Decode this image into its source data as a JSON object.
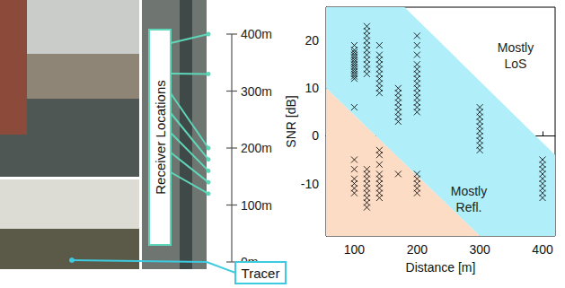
{
  "map": {
    "receiver_label": "Receiver Locations",
    "tracer_label": "Tracer",
    "scale_ticks": [
      {
        "value": 0,
        "label": "0m"
      },
      {
        "value": 100,
        "label": "100m"
      },
      {
        "value": 200,
        "label": "200m"
      },
      {
        "value": 300,
        "label": "300m"
      },
      {
        "value": 400,
        "label": "400m"
      }
    ],
    "receiver_distances": [
      400,
      330,
      200,
      180,
      160,
      140,
      120
    ]
  },
  "chart_data": {
    "type": "scatter",
    "x_label": "Distance [m]",
    "y_label": "SNR [dB]",
    "xlim": [
      55,
      420
    ],
    "xticks": [
      100,
      200,
      300,
      400
    ],
    "ylim": [
      -21,
      27
    ],
    "yticks": [
      -10,
      0,
      10,
      20
    ],
    "grid": false,
    "marker": "x",
    "color": "#000000",
    "regions": [
      {
        "label": "Mostly LoS",
        "color": "#b0eef9",
        "polygon": [
          [
            55,
            27
          ],
          [
            180,
            27
          ],
          [
            420,
            -4
          ],
          [
            420,
            -21
          ],
          [
            300,
            -21
          ],
          [
            55,
            10
          ]
        ]
      },
      {
        "label": "Mostly Refl.",
        "color": "#fcdcc4",
        "polygon": [
          [
            55,
            10
          ],
          [
            300,
            -21
          ],
          [
            55,
            -21
          ]
        ]
      }
    ],
    "x": [
      100,
      100,
      100,
      100,
      100,
      100,
      100,
      100,
      100,
      100,
      100,
      100,
      100,
      100,
      100,
      100,
      100,
      100,
      100,
      100,
      100,
      120,
      120,
      120,
      120,
      120,
      120,
      120,
      120,
      120,
      120,
      120,
      120,
      120,
      120,
      120,
      120,
      120,
      120,
      120,
      120,
      140,
      140,
      140,
      140,
      140,
      140,
      140,
      140,
      140,
      140,
      140,
      140,
      140,
      140,
      140,
      140,
      140,
      140,
      140,
      170,
      170,
      170,
      170,
      170,
      170,
      170,
      170,
      170,
      200,
      200,
      200,
      200,
      200,
      200,
      200,
      200,
      200,
      200,
      200,
      200,
      200,
      200,
      200,
      200,
      200,
      200,
      200,
      300,
      300,
      300,
      300,
      300,
      300,
      300,
      300,
      300,
      300,
      400,
      400,
      400,
      400,
      400,
      400,
      400,
      400,
      400
    ],
    "values": [
      19,
      18,
      17.5,
      17,
      16.5,
      16,
      15.5,
      15,
      14.5,
      14,
      13.5,
      13,
      12.5,
      12,
      6,
      -5,
      -7,
      -9,
      -10,
      -11,
      -12,
      23,
      22,
      21,
      20,
      19,
      18,
      17,
      16,
      15,
      14,
      13,
      -7,
      -8,
      -9,
      -10,
      -11,
      -12,
      -13,
      -14,
      -15,
      19,
      17,
      16,
      15,
      14,
      13,
      12,
      11,
      10,
      9,
      -3,
      -4,
      -6,
      -8,
      -9,
      -10,
      -11,
      -12,
      -13,
      10,
      9,
      8,
      7,
      6,
      5,
      4,
      3,
      -8,
      21,
      19,
      17,
      15,
      14,
      13,
      12,
      11,
      10,
      9,
      8,
      7,
      6,
      5,
      -8,
      -9,
      -10,
      -11,
      -12,
      6,
      5,
      4,
      3,
      2,
      1,
      0,
      -1,
      -2,
      -3,
      -5,
      -6,
      -7,
      -8,
      -9,
      -10,
      -11,
      -12,
      -13
    ]
  }
}
